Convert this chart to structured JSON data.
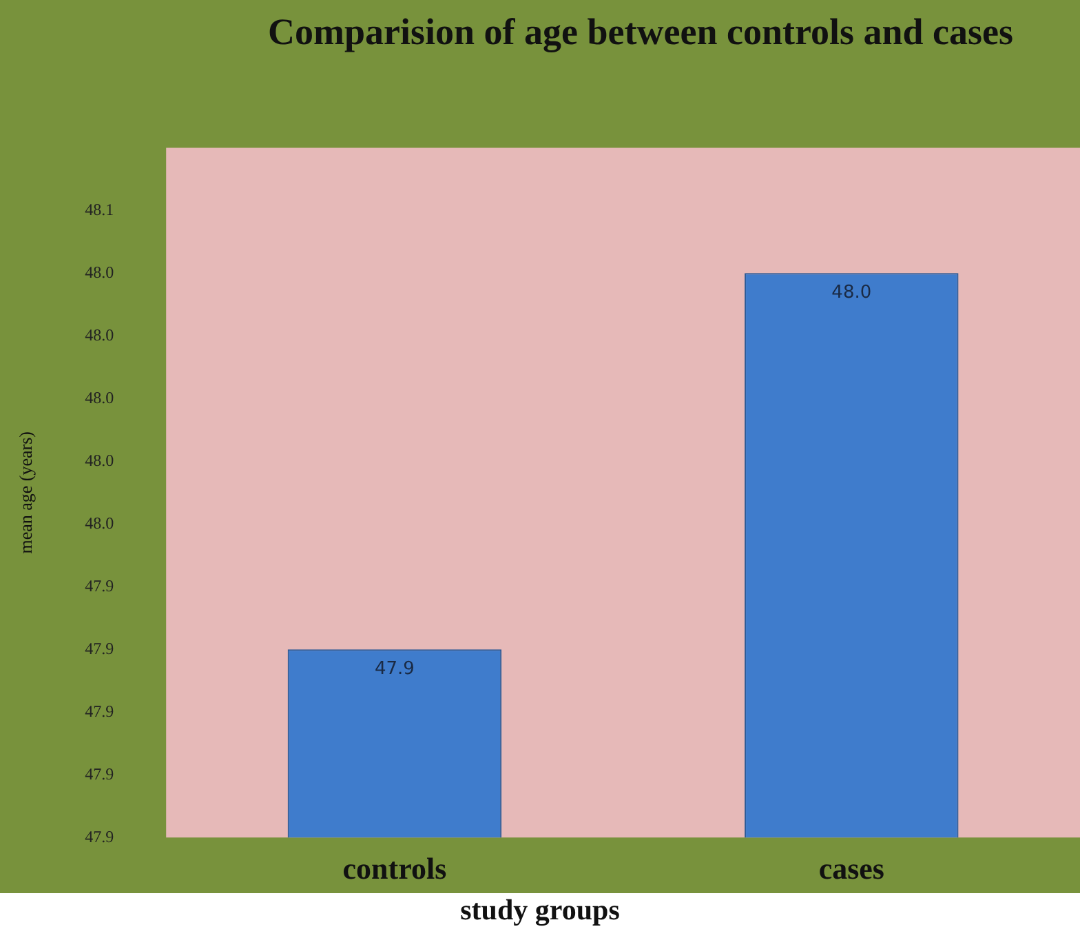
{
  "chart_data": {
    "type": "bar",
    "title": "Comparision of age between controls and cases",
    "xlabel": "study groups",
    "ylabel": "mean age (years)",
    "categories": [
      "controls",
      "cases"
    ],
    "values": [
      47.92,
      48.04
    ],
    "color": "#3f7ccc",
    "value_labels": [
      "47.9",
      "48.0"
    ],
    "ylim": [
      47.86,
      48.08
    ],
    "yticks": [
      {
        "value": 47.86,
        "label": "47.9"
      },
      {
        "value": 47.88,
        "label": "47.9"
      },
      {
        "value": 47.9,
        "label": "47.9"
      },
      {
        "value": 47.92,
        "label": "47.9"
      },
      {
        "value": 47.94,
        "label": "47.9"
      },
      {
        "value": 47.96,
        "label": "48.0"
      },
      {
        "value": 47.98,
        "label": "48.0"
      },
      {
        "value": 48.0,
        "label": "48.0"
      },
      {
        "value": 48.02,
        "label": "48.0"
      },
      {
        "value": 48.04,
        "label": "48.0"
      },
      {
        "value": 48.06,
        "label": "48.1"
      }
    ],
    "grid": false,
    "legend": false
  }
}
